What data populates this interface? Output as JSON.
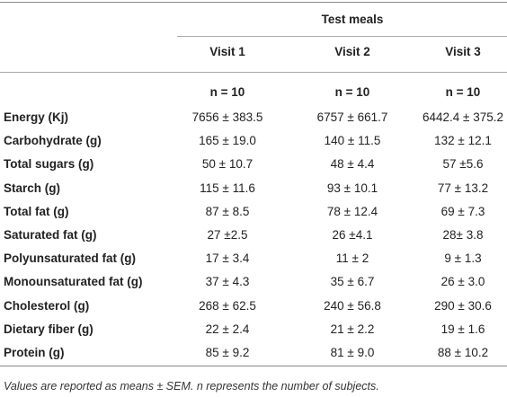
{
  "table": {
    "group_header": "Test meals",
    "columns": [
      "Visit 1",
      "Visit 2",
      "Visit 3"
    ],
    "n_row": [
      "n = 10",
      "n = 10",
      "n = 10"
    ],
    "rows": [
      [
        "Energy (Kj)",
        "7656 ± 383.5",
        "6757 ± 661.7",
        "6442.4 ± 375.2"
      ],
      [
        "Carbohydrate (g)",
        "165 ± 19.0",
        "140 ± 11.5",
        "132 ± 12.1"
      ],
      [
        "Total sugars (g)",
        "50 ± 10.7",
        "48 ± 4.4",
        "57 ±5.6"
      ],
      [
        "Starch (g)",
        "115 ± 11.6",
        "93 ± 10.1",
        "77 ± 13.2"
      ],
      [
        "Total fat (g)",
        "87 ± 8.5",
        "78 ± 12.4",
        "69 ± 7.3"
      ],
      [
        "Saturated fat (g)",
        "27 ±2.5",
        "26 ±4.1",
        "28± 3.8"
      ],
      [
        "Polyunsaturated fat (g)",
        "17 ± 3.4",
        "11 ± 2",
        "9 ± 1.3"
      ],
      [
        "Monounsaturated fat (g)",
        "37 ± 4.3",
        "35 ± 6.7",
        "26 ± 3.0"
      ],
      [
        "Cholesterol (g)",
        "268 ± 62.5",
        "240 ± 56.8",
        "290 ± 30.6"
      ],
      [
        "Dietary fiber (g)",
        "22 ± 2.4",
        "21 ± 2.2",
        "19 ± 1.6"
      ],
      [
        "Protein (g)",
        "85 ± 9.2",
        "81 ± 9.0",
        "88 ± 10.2"
      ]
    ],
    "footnote": "Values are reported as means ± SEM. n represents the number of subjects."
  }
}
